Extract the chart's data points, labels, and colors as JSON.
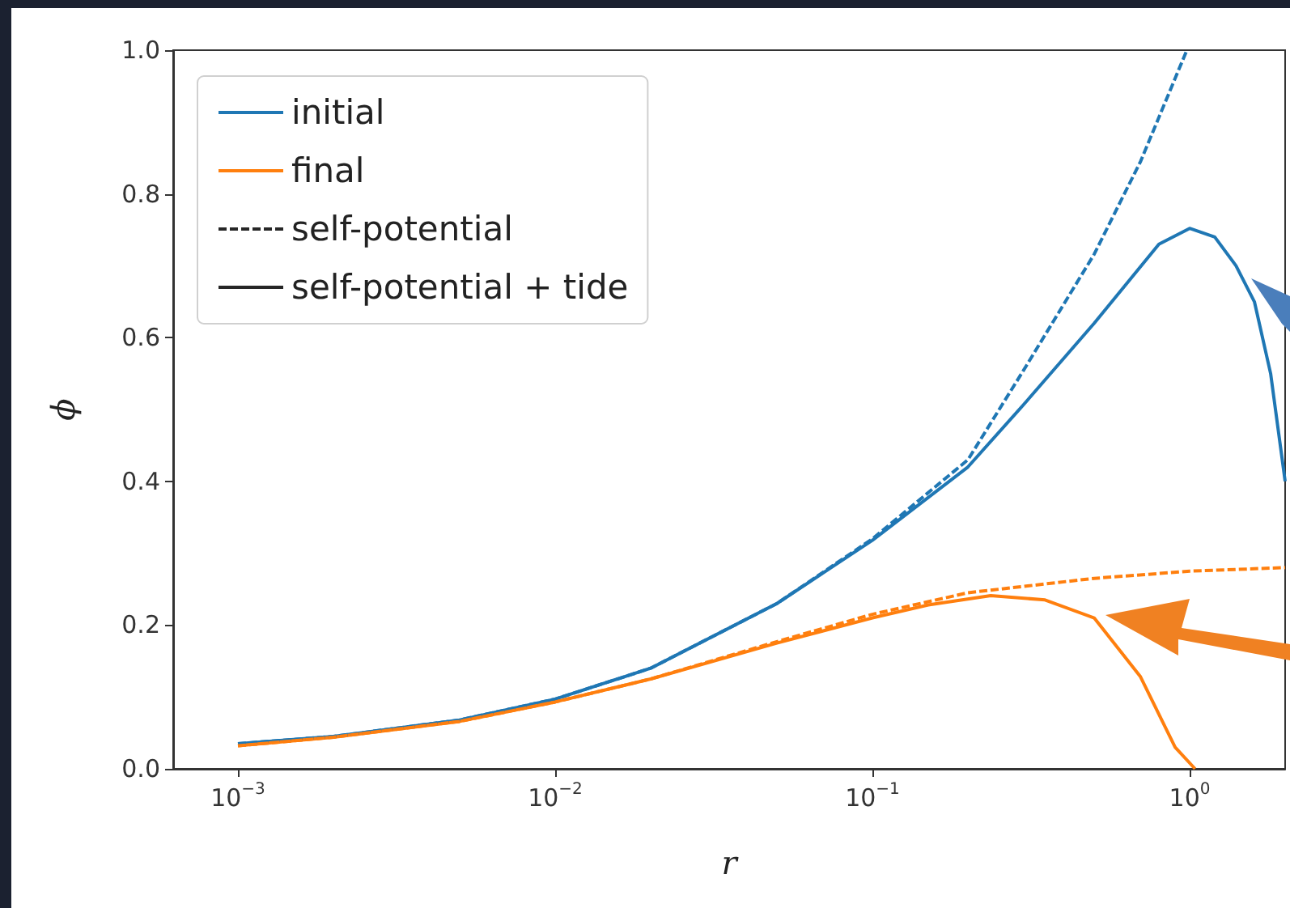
{
  "chart_data": {
    "type": "line",
    "xlabel": "r",
    "ylabel": "ϕ",
    "log": "x",
    "xlim": [
      0.000625,
      2.0
    ],
    "xticks": [
      {
        "value": 0.001,
        "label": "10$^{−3}$"
      },
      {
        "value": 0.01,
        "label": "10$^{−2}$"
      },
      {
        "value": 0.1,
        "label": "10$^{−1}$"
      },
      {
        "value": 1,
        "label": "10$^{0}$"
      }
    ],
    "ylim": [
      0,
      1
    ],
    "yticks": [
      {
        "value": 0,
        "label": "0.0"
      },
      {
        "value": 0.2,
        "label": "0.2"
      },
      {
        "value": 0.4,
        "label": "0.4"
      },
      {
        "value": 0.6,
        "label": "0.6"
      },
      {
        "value": 0.8,
        "label": "0.8"
      },
      {
        "value": 1,
        "label": "1.0"
      }
    ],
    "grid": false,
    "legend": "top left",
    "series": [
      {
        "name": "initial",
        "color": "#1f77b4",
        "line_style": "solid",
        "x": [
          0.001,
          0.002,
          0.005,
          0.01,
          0.02,
          0.05,
          0.1,
          0.2,
          0.3,
          0.5,
          0.8,
          1.0,
          1.2,
          1.4,
          1.6,
          1.8,
          2.0
        ],
        "values": [
          0.035,
          0.045,
          0.068,
          0.097,
          0.14,
          0.23,
          0.318,
          0.42,
          0.507,
          0.62,
          0.73,
          0.752,
          0.74,
          0.7,
          0.65,
          0.55,
          0.4
        ]
      },
      {
        "name": "final",
        "color": "#ff7f0e",
        "line_style": "solid",
        "x": [
          0.001,
          0.002,
          0.005,
          0.01,
          0.02,
          0.05,
          0.1,
          0.15,
          0.236,
          0.35,
          0.5,
          0.7,
          0.9,
          1.04
        ],
        "values": [
          0.032,
          0.044,
          0.066,
          0.093,
          0.125,
          0.175,
          0.21,
          0.228,
          0.241,
          0.235,
          0.21,
          0.128,
          0.03,
          0.0
        ]
      },
      {
        "color": "#1f77b4",
        "line_style": "dashed",
        "x": [
          0.001,
          0.002,
          0.005,
          0.01,
          0.02,
          0.05,
          0.1,
          0.2,
          0.3,
          0.5,
          0.7,
          0.98
        ],
        "values": [
          0.035,
          0.045,
          0.068,
          0.097,
          0.14,
          0.23,
          0.32,
          0.43,
          0.555,
          0.716,
          0.845,
          1.0
        ]
      },
      {
        "color": "#ff7f0e",
        "line_style": "dashed",
        "x": [
          0.001,
          0.002,
          0.005,
          0.01,
          0.02,
          0.05,
          0.1,
          0.2,
          0.5,
          1.0,
          2.0
        ],
        "values": [
          0.032,
          0.044,
          0.066,
          0.093,
          0.125,
          0.177,
          0.215,
          0.245,
          0.265,
          0.275,
          0.28
        ]
      },
      {
        "name": "self-potential",
        "color": "#262626",
        "line_style": "dashed"
      },
      {
        "name": "self-potential + tide",
        "color": "#262626",
        "line_style": "solid"
      }
    ]
  }
}
